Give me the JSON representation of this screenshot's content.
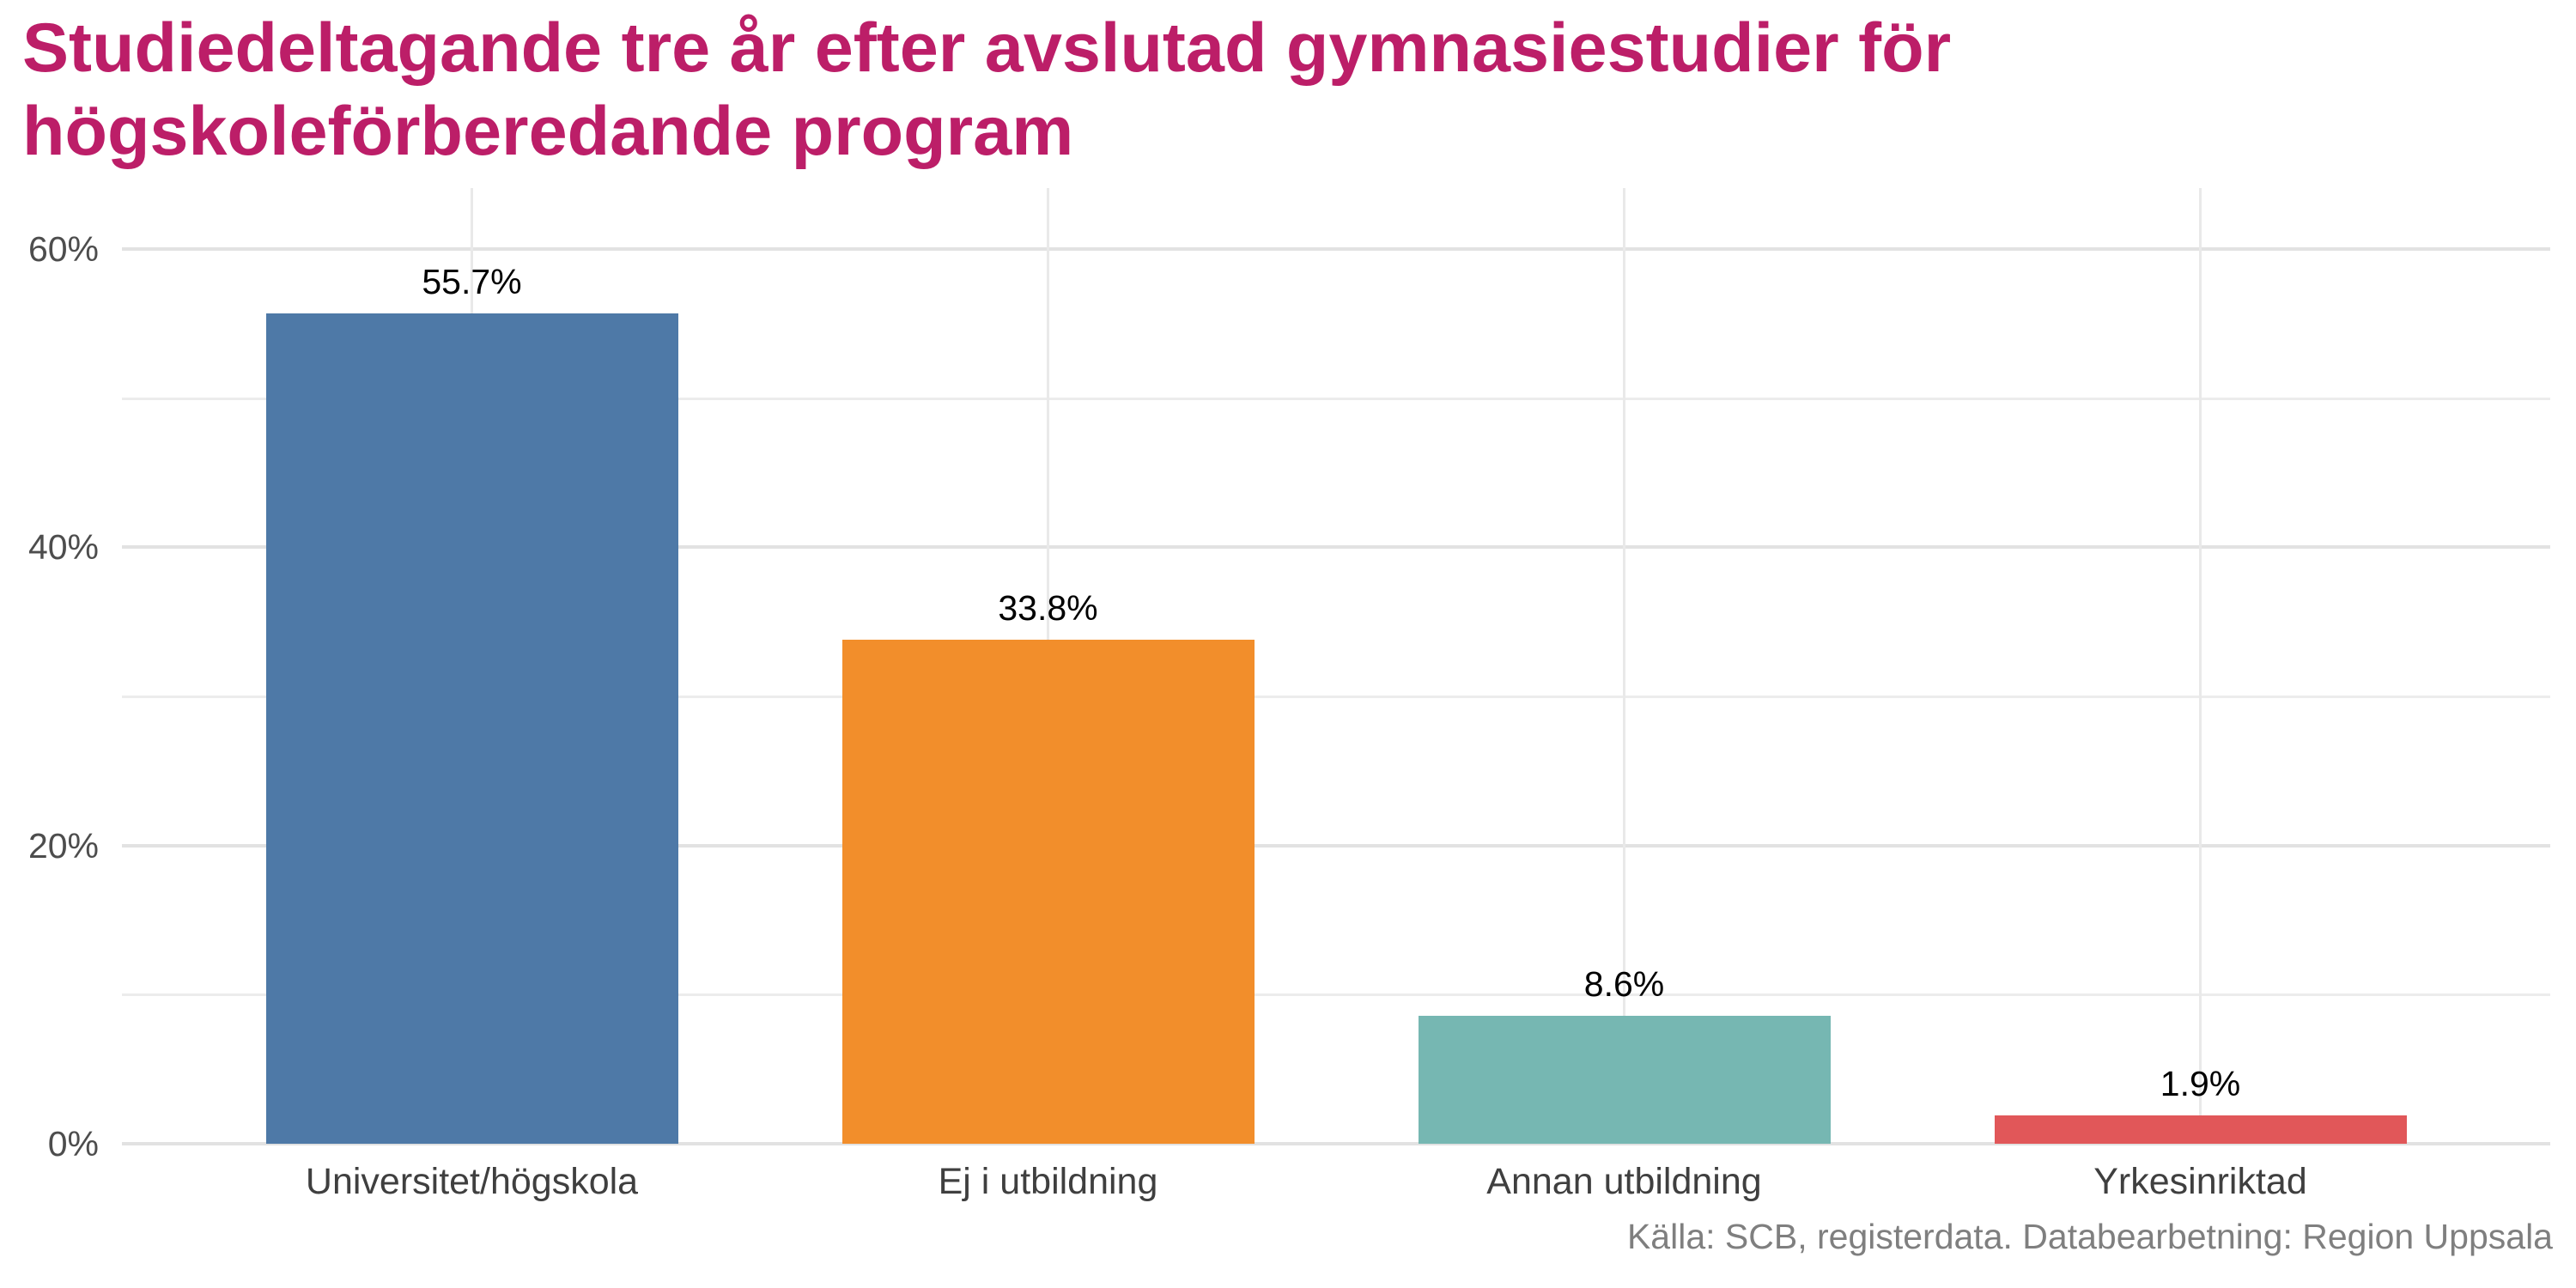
{
  "title": {
    "lines": [
      "Studiedeltagande tre år efter avslutad gymnasiestudier för",
      "högskoleförberedande program"
    ],
    "color": "#BC1E68"
  },
  "caption": {
    "text": "Källa: SCB, registerdata. Databearbetning: Region Uppsala",
    "color": "#7F7F7F"
  },
  "chart_data": {
    "type": "bar",
    "title": "Studiedeltagande tre år efter avslutad gymnasiestudier för högskoleförberedande program",
    "categories": [
      "Universitet/högskola",
      "Ej i utbildning",
      "Annan utbildning",
      "Yrkesinriktad"
    ],
    "values": [
      55.7,
      33.8,
      8.6,
      1.9
    ],
    "value_labels": [
      "55.7%",
      "33.8%",
      "8.6%",
      "1.9%"
    ],
    "bar_colors": [
      "#4E79A7",
      "#F28E2B",
      "#76B7B2",
      "#E15759"
    ],
    "xlabel": "",
    "ylabel": "",
    "ylim": [
      0,
      64.1
    ],
    "yticks_major": [
      0,
      20,
      40,
      60
    ],
    "ytick_labels": [
      "0%",
      "20%",
      "40%",
      "60%"
    ],
    "yticks_minor": [
      10,
      30,
      50
    ],
    "grid": "horizontal lines every 10%, vertical line at each category center",
    "legend": false
  },
  "style": {
    "background": "#FFFFFF",
    "axis_text_color": "#4D4D4D",
    "category_text_color": "#3F3F3F",
    "value_label_color": "#000000",
    "grid_major_color": "#E2E2E2",
    "grid_minor_color": "#ECECEC",
    "grid_vertical_color": "#E9E9E9"
  }
}
